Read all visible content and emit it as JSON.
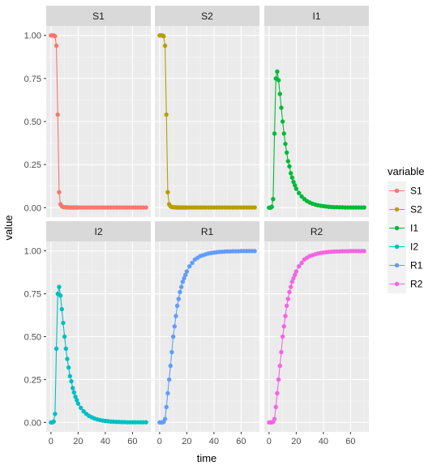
{
  "chart_data": {
    "type": "line",
    "facet_layout": "2x3",
    "xlabel": "time",
    "ylabel": "value",
    "legend_title": "variable",
    "legend_position": "right",
    "xlim": [
      0,
      70
    ],
    "ylim": [
      0,
      1
    ],
    "x_ticks": [
      0,
      20,
      40,
      60
    ],
    "x_tick_labels": [
      "0",
      "20",
      "40",
      "60"
    ],
    "y_ticks": [
      0,
      0.25,
      0.5,
      0.75,
      1
    ],
    "y_tick_labels": [
      "0.00",
      "0.25",
      "0.50",
      "0.75",
      "1.00"
    ],
    "grid": true,
    "markers": true,
    "x": [
      0,
      1,
      2,
      3,
      4,
      5,
      6,
      7,
      8,
      9,
      10,
      11,
      12,
      13,
      14,
      15,
      16,
      17,
      18,
      19,
      20,
      22,
      24,
      26,
      28,
      30,
      32,
      34,
      36,
      38,
      40,
      42,
      44,
      46,
      48,
      50,
      52,
      54,
      56,
      58,
      60,
      62,
      64,
      66,
      68,
      70
    ],
    "series": [
      {
        "name": "S1",
        "color": "#F8766D",
        "values": [
          1,
          1,
          1,
          0.995,
          0.94,
          0.54,
          0.09,
          0.02,
          0.008,
          0.004,
          0.003,
          0.002,
          0.002,
          0.001,
          0.001,
          0.001,
          0.001,
          0.001,
          0.001,
          0.001,
          0.001,
          0.001,
          0.001,
          0.001,
          0.001,
          0.001,
          0.001,
          0.001,
          0.001,
          0.001,
          0.001,
          0.001,
          0.001,
          0.001,
          0.001,
          0.001,
          0.001,
          0.001,
          0.001,
          0.001,
          0.001,
          0.001,
          0.001,
          0.001,
          0.001,
          0.001
        ]
      },
      {
        "name": "S2",
        "color": "#B79F00",
        "values": [
          1,
          1,
          1,
          0.995,
          0.94,
          0.54,
          0.09,
          0.02,
          0.008,
          0.004,
          0.003,
          0.002,
          0.002,
          0.001,
          0.001,
          0.001,
          0.001,
          0.001,
          0.001,
          0.001,
          0.001,
          0.001,
          0.001,
          0.001,
          0.001,
          0.001,
          0.001,
          0.001,
          0.001,
          0.001,
          0.001,
          0.001,
          0.001,
          0.001,
          0.001,
          0.001,
          0.001,
          0.001,
          0.001,
          0.001,
          0.001,
          0.001,
          0.001,
          0.001,
          0.001,
          0.001
        ]
      },
      {
        "name": "I1",
        "color": "#00BA38",
        "values": [
          0,
          0,
          0.005,
          0.05,
          0.43,
          0.75,
          0.79,
          0.74,
          0.66,
          0.58,
          0.5,
          0.43,
          0.37,
          0.32,
          0.27,
          0.24,
          0.2,
          0.175,
          0.15,
          0.13,
          0.11,
          0.085,
          0.065,
          0.05,
          0.038,
          0.03,
          0.023,
          0.018,
          0.014,
          0.011,
          0.009,
          0.007,
          0.005,
          0.004,
          0.003,
          0.003,
          0.002,
          0.002,
          0.001,
          0.001,
          0.001,
          0.001,
          0.001,
          0.001,
          0.001,
          0.001
        ]
      },
      {
        "name": "I2",
        "color": "#00BFC4",
        "values": [
          0,
          0,
          0.005,
          0.05,
          0.43,
          0.75,
          0.79,
          0.74,
          0.66,
          0.58,
          0.5,
          0.43,
          0.37,
          0.32,
          0.27,
          0.24,
          0.2,
          0.175,
          0.15,
          0.13,
          0.11,
          0.085,
          0.065,
          0.05,
          0.038,
          0.03,
          0.023,
          0.018,
          0.014,
          0.011,
          0.009,
          0.007,
          0.005,
          0.004,
          0.003,
          0.003,
          0.002,
          0.002,
          0.001,
          0.001,
          0.001,
          0.001,
          0.001,
          0.001,
          0.001,
          0.001
        ]
      },
      {
        "name": "R1",
        "color": "#619CFF",
        "values": [
          0,
          0,
          0,
          0.003,
          0.02,
          0.09,
          0.17,
          0.25,
          0.33,
          0.41,
          0.5,
          0.56,
          0.62,
          0.68,
          0.72,
          0.76,
          0.79,
          0.82,
          0.84,
          0.86,
          0.88,
          0.91,
          0.93,
          0.95,
          0.96,
          0.97,
          0.975,
          0.98,
          0.985,
          0.988,
          0.99,
          0.992,
          0.994,
          0.995,
          0.996,
          0.997,
          0.997,
          0.998,
          0.998,
          0.998,
          0.999,
          0.999,
          0.999,
          0.999,
          0.999,
          0.999
        ]
      },
      {
        "name": "R2",
        "color": "#F564E3",
        "values": [
          0,
          0,
          0,
          0.003,
          0.02,
          0.09,
          0.17,
          0.25,
          0.33,
          0.41,
          0.5,
          0.56,
          0.62,
          0.68,
          0.72,
          0.76,
          0.79,
          0.82,
          0.84,
          0.86,
          0.88,
          0.91,
          0.93,
          0.95,
          0.96,
          0.97,
          0.975,
          0.98,
          0.985,
          0.988,
          0.99,
          0.992,
          0.994,
          0.995,
          0.996,
          0.997,
          0.997,
          0.998,
          0.998,
          0.998,
          0.999,
          0.999,
          0.999,
          0.999,
          0.999,
          0.999
        ]
      }
    ]
  }
}
